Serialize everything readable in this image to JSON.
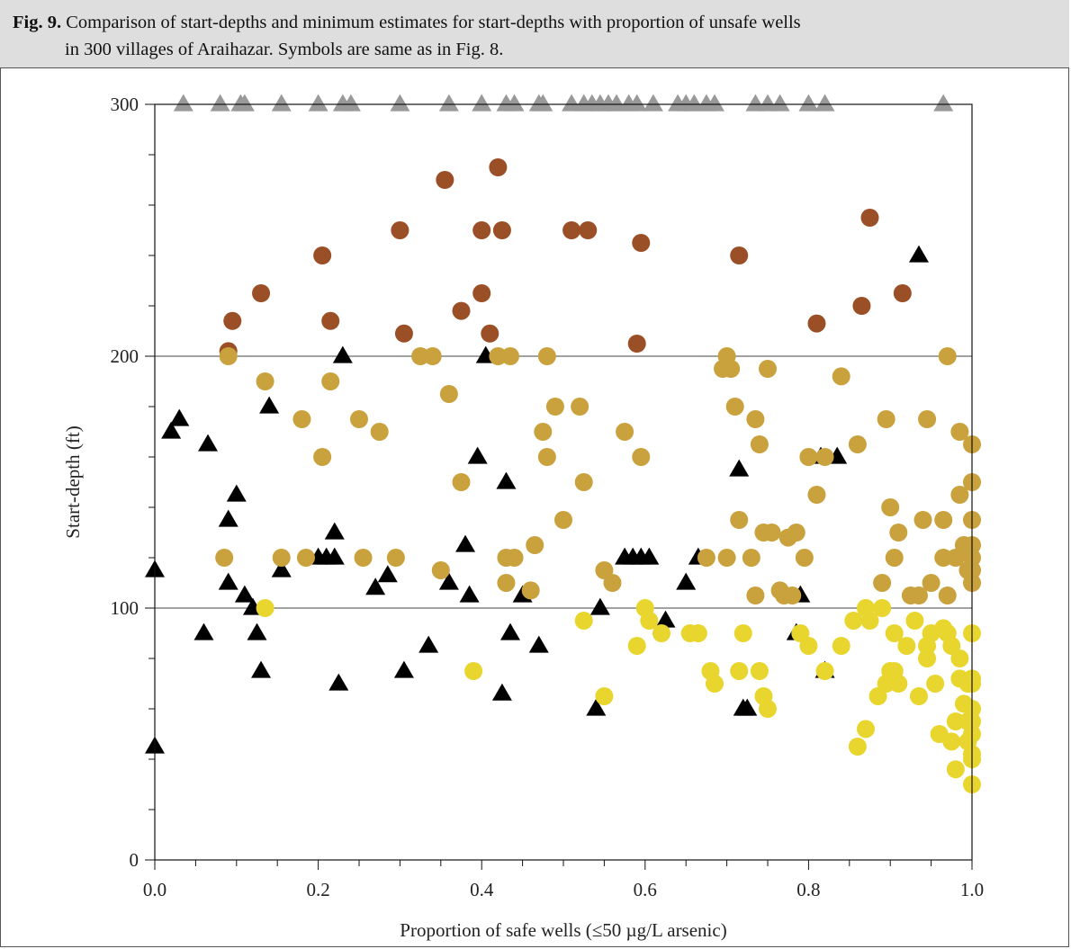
{
  "caption": {
    "label": "Fig. 9.",
    "line1": "Comparison of start-depths and minimum estimates for start-depths with proportion of unsafe wells",
    "line2": "in 300 villages of Araihazar. Symbols are same as in Fig. 8."
  },
  "chart_data": {
    "type": "scatter",
    "title": "",
    "xlabel": "Proportion of safe wells (≤50 µg/L arsenic)",
    "ylabel": "Start-depth (ft)",
    "xlim": [
      0,
      1
    ],
    "ylim": [
      0,
      300
    ],
    "x_ticks": [
      "0.0",
      "0.2",
      "0.4",
      "0.6",
      "0.8",
      "1.0"
    ],
    "y_ticks": [
      "0",
      "100",
      "200",
      "300"
    ],
    "grid": "horizontal at 100, 200, 300",
    "colors": {
      "grey_triangle": "#999999",
      "black_triangle": "#000000",
      "brown_circle": "#9b4f26",
      "tan_circle": "#c9a13d",
      "yellow_circle": "#e8d62f"
    },
    "series": [
      {
        "marker": "triangle",
        "color": "#999999",
        "points": [
          [
            0.035,
            300
          ],
          [
            0.08,
            300
          ],
          [
            0.105,
            300
          ],
          [
            0.11,
            300
          ],
          [
            0.155,
            300
          ],
          [
            0.2,
            300
          ],
          [
            0.23,
            300
          ],
          [
            0.24,
            300
          ],
          [
            0.3,
            300
          ],
          [
            0.36,
            300
          ],
          [
            0.4,
            300
          ],
          [
            0.43,
            300
          ],
          [
            0.44,
            300
          ],
          [
            0.47,
            300
          ],
          [
            0.475,
            300
          ],
          [
            0.51,
            300
          ],
          [
            0.525,
            300
          ],
          [
            0.535,
            300
          ],
          [
            0.545,
            300
          ],
          [
            0.555,
            300
          ],
          [
            0.565,
            300
          ],
          [
            0.58,
            300
          ],
          [
            0.59,
            300
          ],
          [
            0.61,
            300
          ],
          [
            0.64,
            300
          ],
          [
            0.65,
            300
          ],
          [
            0.66,
            300
          ],
          [
            0.675,
            300
          ],
          [
            0.685,
            300
          ],
          [
            0.735,
            300
          ],
          [
            0.75,
            300
          ],
          [
            0.765,
            300
          ],
          [
            0.8,
            300
          ],
          [
            0.82,
            300
          ],
          [
            0.965,
            300
          ]
        ]
      },
      {
        "marker": "triangle",
        "color": "#000000",
        "points": [
          [
            0.0,
            115
          ],
          [
            0.0,
            45
          ],
          [
            0.02,
            170
          ],
          [
            0.03,
            175
          ],
          [
            0.06,
            90
          ],
          [
            0.065,
            165
          ],
          [
            0.09,
            135
          ],
          [
            0.09,
            110
          ],
          [
            0.1,
            145
          ],
          [
            0.11,
            105
          ],
          [
            0.12,
            100
          ],
          [
            0.125,
            90
          ],
          [
            0.13,
            75
          ],
          [
            0.14,
            180
          ],
          [
            0.155,
            115
          ],
          [
            0.2,
            120
          ],
          [
            0.21,
            120
          ],
          [
            0.22,
            130
          ],
          [
            0.22,
            120
          ],
          [
            0.225,
            70
          ],
          [
            0.23,
            200
          ],
          [
            0.27,
            108
          ],
          [
            0.285,
            113
          ],
          [
            0.305,
            75
          ],
          [
            0.335,
            85
          ],
          [
            0.36,
            110
          ],
          [
            0.38,
            125
          ],
          [
            0.385,
            105
          ],
          [
            0.395,
            160
          ],
          [
            0.405,
            200
          ],
          [
            0.425,
            66
          ],
          [
            0.43,
            150
          ],
          [
            0.435,
            90
          ],
          [
            0.45,
            105
          ],
          [
            0.47,
            85
          ],
          [
            0.54,
            60
          ],
          [
            0.545,
            100
          ],
          [
            0.575,
            120
          ],
          [
            0.585,
            120
          ],
          [
            0.595,
            120
          ],
          [
            0.605,
            120
          ],
          [
            0.625,
            95
          ],
          [
            0.65,
            110
          ],
          [
            0.665,
            120
          ],
          [
            0.715,
            155
          ],
          [
            0.72,
            60
          ],
          [
            0.725,
            60
          ],
          [
            0.785,
            90
          ],
          [
            0.79,
            105
          ],
          [
            0.815,
            160
          ],
          [
            0.82,
            75
          ],
          [
            0.835,
            160
          ],
          [
            0.935,
            240
          ]
        ]
      },
      {
        "marker": "circle",
        "color": "#9b4f26",
        "points": [
          [
            0.09,
            202
          ],
          [
            0.095,
            214
          ],
          [
            0.13,
            225
          ],
          [
            0.205,
            240
          ],
          [
            0.215,
            214
          ],
          [
            0.3,
            250
          ],
          [
            0.305,
            209
          ],
          [
            0.355,
            270
          ],
          [
            0.375,
            218
          ],
          [
            0.4,
            250
          ],
          [
            0.4,
            225
          ],
          [
            0.41,
            209
          ],
          [
            0.42,
            275
          ],
          [
            0.425,
            250
          ],
          [
            0.51,
            250
          ],
          [
            0.53,
            250
          ],
          [
            0.59,
            205
          ],
          [
            0.595,
            245
          ],
          [
            0.715,
            240
          ],
          [
            0.81,
            213
          ],
          [
            0.865,
            220
          ],
          [
            0.875,
            255
          ],
          [
            0.915,
            225
          ]
        ]
      },
      {
        "marker": "circle",
        "color": "#c9a13d",
        "points": [
          [
            0.085,
            120
          ],
          [
            0.09,
            200
          ],
          [
            0.135,
            190
          ],
          [
            0.155,
            120
          ],
          [
            0.18,
            175
          ],
          [
            0.185,
            120
          ],
          [
            0.205,
            160
          ],
          [
            0.215,
            190
          ],
          [
            0.25,
            175
          ],
          [
            0.255,
            120
          ],
          [
            0.275,
            170
          ],
          [
            0.295,
            120
          ],
          [
            0.325,
            200
          ],
          [
            0.34,
            200
          ],
          [
            0.35,
            115
          ],
          [
            0.36,
            185
          ],
          [
            0.375,
            150
          ],
          [
            0.42,
            200
          ],
          [
            0.43,
            120
          ],
          [
            0.43,
            110
          ],
          [
            0.435,
            200
          ],
          [
            0.44,
            120
          ],
          [
            0.46,
            107
          ],
          [
            0.465,
            125
          ],
          [
            0.475,
            170
          ],
          [
            0.48,
            200
          ],
          [
            0.48,
            160
          ],
          [
            0.49,
            180
          ],
          [
            0.5,
            135
          ],
          [
            0.52,
            180
          ],
          [
            0.525,
            150
          ],
          [
            0.55,
            115
          ],
          [
            0.56,
            110
          ],
          [
            0.575,
            170
          ],
          [
            0.595,
            160
          ],
          [
            0.675,
            120
          ],
          [
            0.695,
            195
          ],
          [
            0.7,
            200
          ],
          [
            0.705,
            195
          ],
          [
            0.7,
            120
          ],
          [
            0.71,
            180
          ],
          [
            0.715,
            135
          ],
          [
            0.73,
            120
          ],
          [
            0.735,
            175
          ],
          [
            0.74,
            165
          ],
          [
            0.745,
            130
          ],
          [
            0.735,
            105
          ],
          [
            0.75,
            195
          ],
          [
            0.755,
            130
          ],
          [
            0.765,
            107
          ],
          [
            0.77,
            105
          ],
          [
            0.775,
            128
          ],
          [
            0.78,
            105
          ],
          [
            0.785,
            130
          ],
          [
            0.795,
            120
          ],
          [
            0.8,
            160
          ],
          [
            0.81,
            145
          ],
          [
            0.82,
            160
          ],
          [
            0.84,
            192
          ],
          [
            0.86,
            165
          ],
          [
            0.89,
            110
          ],
          [
            0.895,
            175
          ],
          [
            0.9,
            140
          ],
          [
            0.905,
            120
          ],
          [
            0.91,
            130
          ],
          [
            0.925,
            105
          ],
          [
            0.935,
            105
          ],
          [
            0.94,
            135
          ],
          [
            0.945,
            175
          ],
          [
            0.95,
            110
          ],
          [
            0.965,
            135
          ],
          [
            0.965,
            120
          ],
          [
            0.97,
            200
          ],
          [
            0.97,
            105
          ],
          [
            0.98,
            120
          ],
          [
            0.985,
            145
          ],
          [
            0.985,
            170
          ],
          [
            0.99,
            125
          ],
          [
            0.995,
            115
          ],
          [
            1.0,
            165
          ],
          [
            1.0,
            150
          ],
          [
            1.0,
            135
          ],
          [
            1.0,
            125
          ],
          [
            1.0,
            120
          ],
          [
            1.0,
            115
          ],
          [
            1.0,
            110
          ]
        ]
      },
      {
        "marker": "circle",
        "color": "#e8d62f",
        "points": [
          [
            0.135,
            100
          ],
          [
            0.39,
            75
          ],
          [
            0.525,
            95
          ],
          [
            0.55,
            65
          ],
          [
            0.59,
            85
          ],
          [
            0.6,
            100
          ],
          [
            0.605,
            95
          ],
          [
            0.62,
            90
          ],
          [
            0.655,
            90
          ],
          [
            0.665,
            90
          ],
          [
            0.68,
            75
          ],
          [
            0.685,
            70
          ],
          [
            0.715,
            75
          ],
          [
            0.72,
            90
          ],
          [
            0.74,
            75
          ],
          [
            0.745,
            65
          ],
          [
            0.75,
            60
          ],
          [
            0.79,
            90
          ],
          [
            0.8,
            85
          ],
          [
            0.82,
            75
          ],
          [
            0.84,
            85
          ],
          [
            0.855,
            95
          ],
          [
            0.86,
            45
          ],
          [
            0.87,
            52
          ],
          [
            0.87,
            100
          ],
          [
            0.875,
            95
          ],
          [
            0.885,
            65
          ],
          [
            0.89,
            100
          ],
          [
            0.895,
            70
          ],
          [
            0.9,
            75
          ],
          [
            0.905,
            90
          ],
          [
            0.905,
            75
          ],
          [
            0.91,
            70
          ],
          [
            0.92,
            85
          ],
          [
            0.93,
            95
          ],
          [
            0.935,
            65
          ],
          [
            0.945,
            85
          ],
          [
            0.945,
            80
          ],
          [
            0.95,
            90
          ],
          [
            0.955,
            70
          ],
          [
            0.96,
            50
          ],
          [
            0.965,
            92
          ],
          [
            0.97,
            90
          ],
          [
            0.975,
            85
          ],
          [
            0.975,
            47
          ],
          [
            0.98,
            55
          ],
          [
            0.98,
            36
          ],
          [
            0.985,
            72
          ],
          [
            0.985,
            80
          ],
          [
            0.99,
            62
          ],
          [
            0.995,
            70
          ],
          [
            0.995,
            55
          ],
          [
            0.995,
            47
          ],
          [
            1.0,
            90
          ],
          [
            1.0,
            72
          ],
          [
            1.0,
            70
          ],
          [
            1.0,
            60
          ],
          [
            1.0,
            55
          ],
          [
            1.0,
            50
          ],
          [
            1.0,
            42
          ],
          [
            1.0,
            40
          ],
          [
            1.0,
            30
          ]
        ]
      }
    ]
  }
}
